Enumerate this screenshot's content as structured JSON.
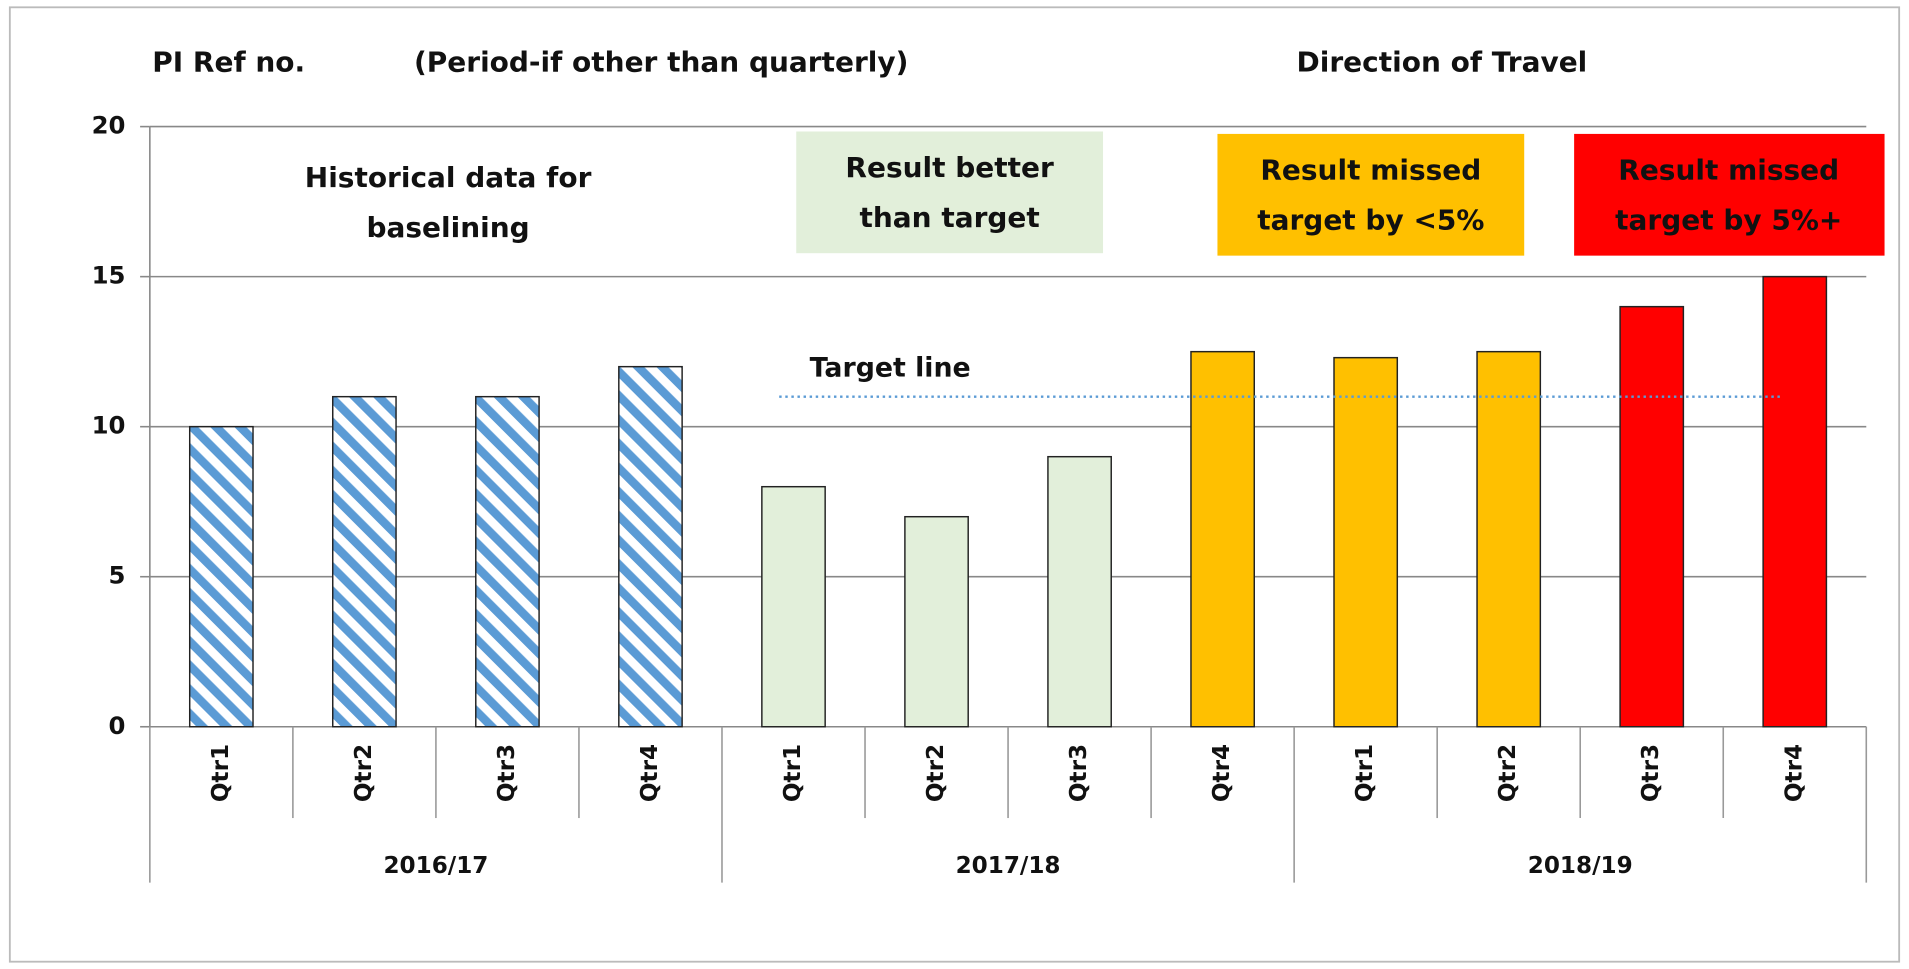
{
  "chart_data": {
    "type": "bar",
    "header": [
      "PI Ref no.",
      "(Period-if other than quarterly)",
      "Direction of Travel"
    ],
    "categories": [
      "Qtr1",
      "Qtr2",
      "Qtr3",
      "Qtr4",
      "Qtr1",
      "Qtr2",
      "Qtr3",
      "Qtr4",
      "Qtr1",
      "Qtr2",
      "Qtr3",
      "Qtr4"
    ],
    "groups": [
      "2016/17",
      "2017/18",
      "2018/19"
    ],
    "values": [
      10,
      11,
      11,
      12,
      8,
      7,
      9,
      12.5,
      12.3,
      12.5,
      14,
      15
    ],
    "colors": [
      "#5b9bd5",
      "#5b9bd5",
      "#5b9bd5",
      "#5b9bd5",
      "#e2efda",
      "#e2efda",
      "#e2efda",
      "#ffc000",
      "#ffc000",
      "#ffc000",
      "#ff0000",
      "#ff0000"
    ],
    "hatched": [
      true,
      true,
      true,
      true,
      false,
      false,
      false,
      false,
      false,
      false,
      false,
      false
    ],
    "ylim": [
      0,
      20
    ],
    "yticks": [
      0,
      5,
      10,
      15,
      20
    ],
    "grid": true,
    "target": {
      "label": "Target line",
      "value": 11,
      "color": "#5b9bd5"
    },
    "annotations": [
      {
        "lines": [
          "Historical data for",
          "baselining"
        ],
        "fill": null
      },
      {
        "lines": [
          "Result better",
          "than target"
        ],
        "fill": "#e2efda"
      },
      {
        "lines": [
          "Result missed",
          "target by <5%"
        ],
        "fill": "#ffc000"
      },
      {
        "lines": [
          "Result missed",
          "target by 5%+"
        ],
        "fill": "#ff0000"
      }
    ]
  }
}
